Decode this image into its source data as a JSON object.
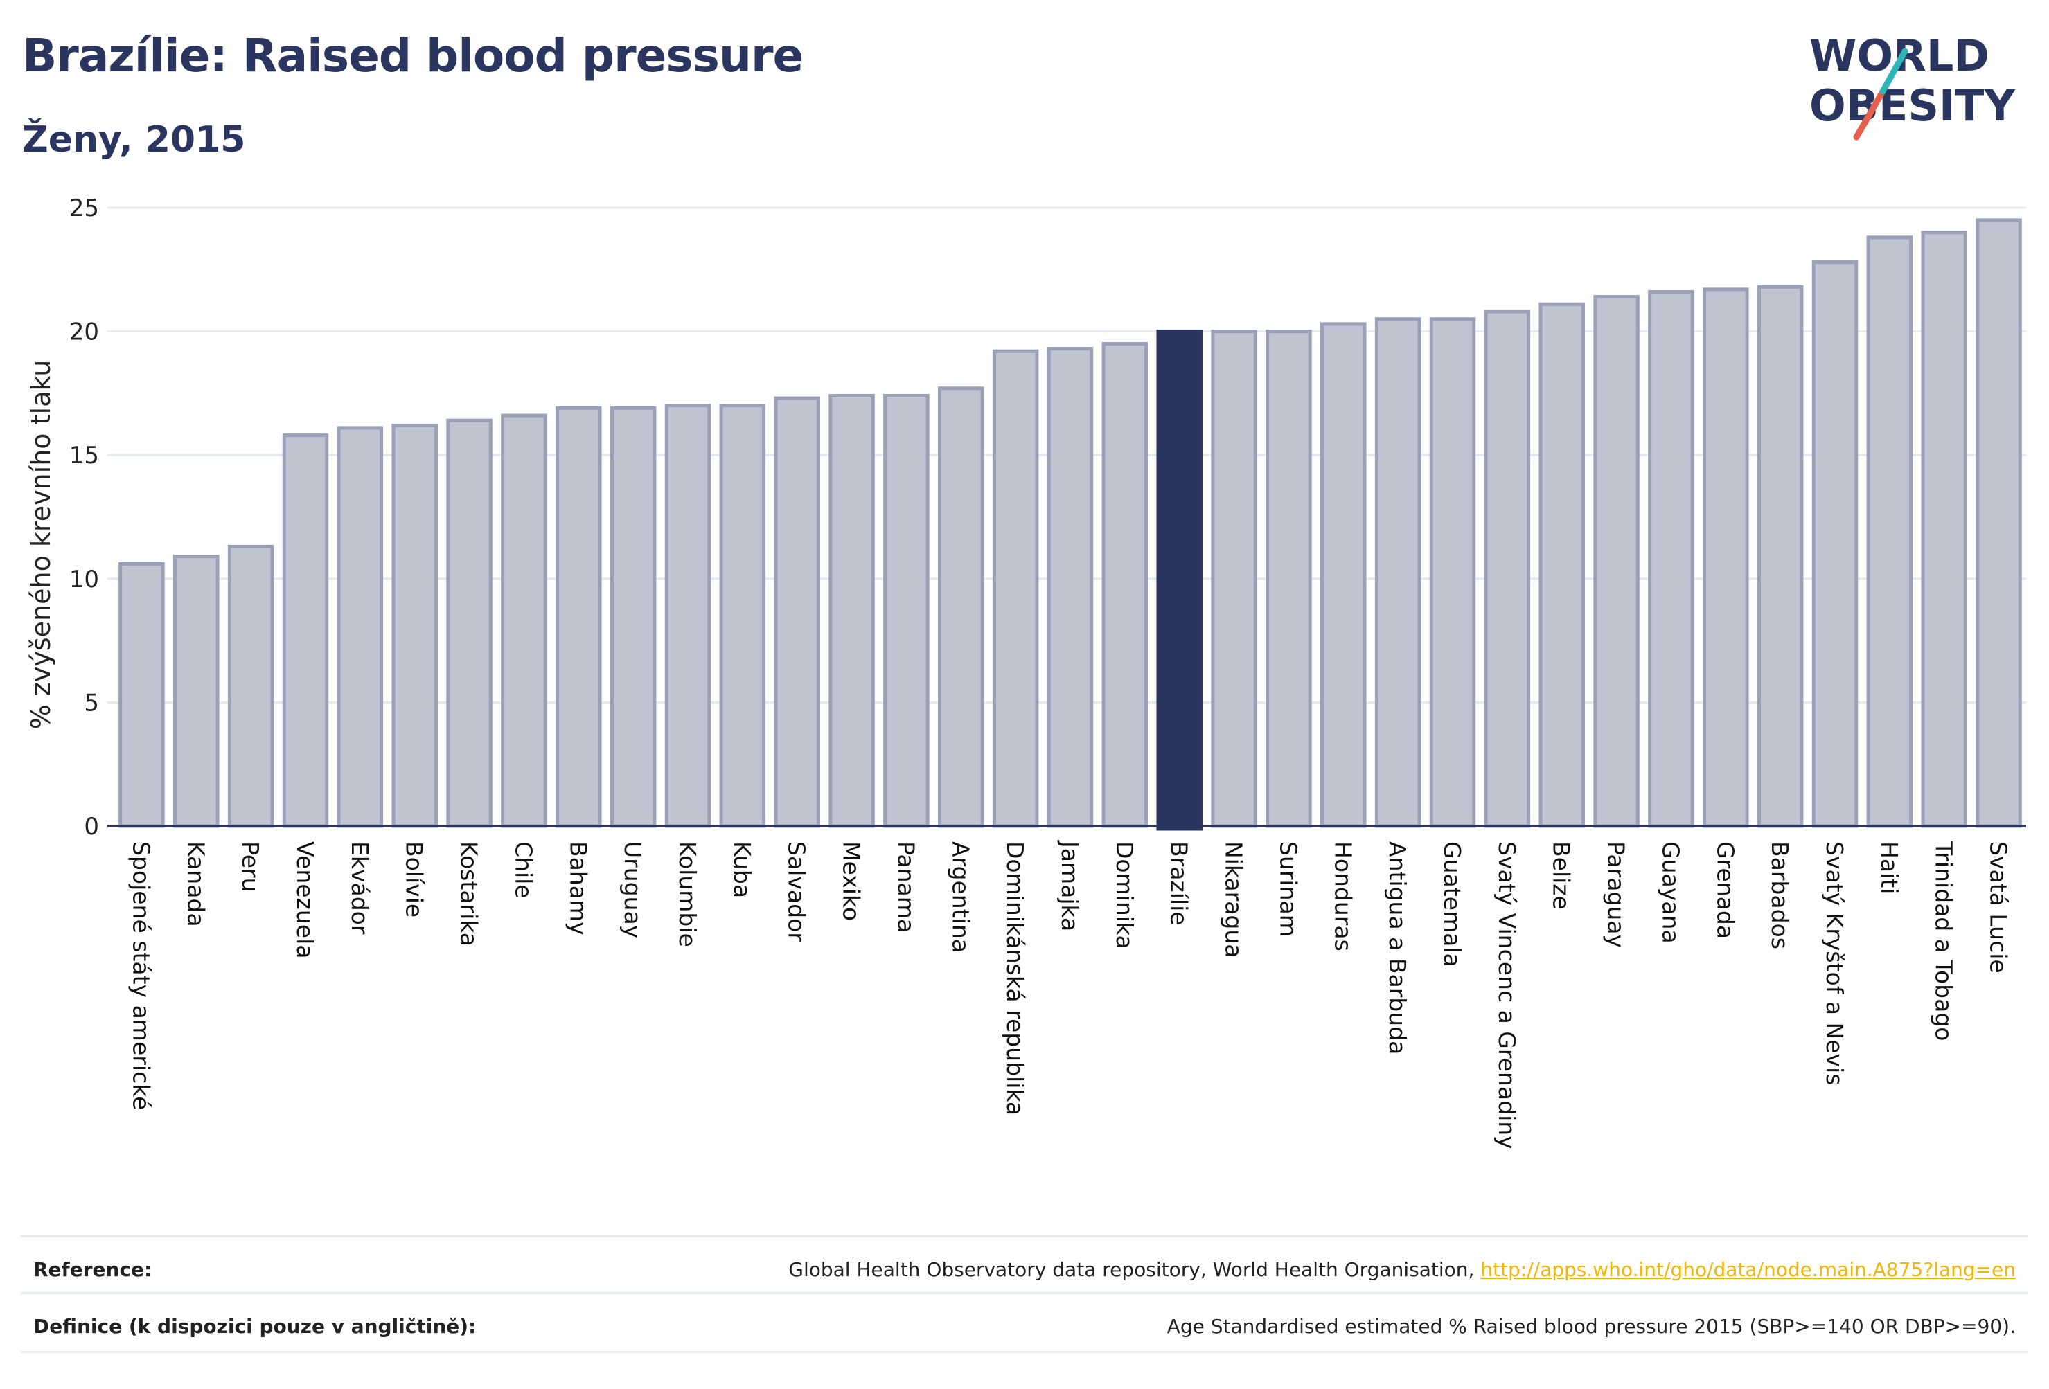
{
  "header": {
    "title": "Brazílie: Raised blood pressure",
    "subtitle": "Ženy, 2015"
  },
  "logo": {
    "line1": "WORLD",
    "line2": "OBESITY",
    "accent_colors": [
      "#2fb5b5",
      "#e8604c"
    ]
  },
  "colors": {
    "bar": "#c0c3d0",
    "bar_border": "#9aa0b8",
    "highlight": "#2b3660",
    "title": "#2b3660",
    "grid": "#e6e8ef",
    "link": "#f2b705"
  },
  "chart_data": {
    "type": "bar",
    "title": "Brazílie: Raised blood pressure",
    "subtitle": "Ženy, 2015",
    "xlabel": "",
    "ylabel": "% zvýšeného krevního tlaku",
    "ylim": [
      0,
      25
    ],
    "yticks": [
      0,
      5,
      10,
      15,
      20,
      25
    ],
    "grid": true,
    "highlight": "Brazílie",
    "categories": [
      "Spojené státy americké",
      "Kanada",
      "Peru",
      "Venezuela",
      "Ekvádor",
      "Bolívie",
      "Kostarika",
      "Chile",
      "Bahamy",
      "Uruguay",
      "Kolumbie",
      "Kuba",
      "Salvador",
      "Mexiko",
      "Panama",
      "Argentina",
      "Dominikánská republika",
      "Jamajka",
      "Dominika",
      "Brazílie",
      "Nikaragua",
      "Surinam",
      "Honduras",
      "Antigua a Barbuda",
      "Guatemala",
      "Svatý Vincenc a Grenadiny",
      "Belize",
      "Paraguay",
      "Guayana",
      "Grenada",
      "Barbados",
      "Svatý Kryštof a Nevis",
      "Haiti",
      "Trinidad a Tobago",
      "Svatá Lucie"
    ],
    "values": [
      10.6,
      10.9,
      11.3,
      15.8,
      16.1,
      16.2,
      16.4,
      16.6,
      16.9,
      16.9,
      17.0,
      17.0,
      17.3,
      17.4,
      17.4,
      17.7,
      19.2,
      19.3,
      19.5,
      20.0,
      20.0,
      20.0,
      20.3,
      20.5,
      20.5,
      20.8,
      21.1,
      21.4,
      21.6,
      21.7,
      21.8,
      22.8,
      23.8,
      24.0,
      24.5
    ]
  },
  "footer": {
    "reference_label": "Reference:",
    "reference_text": "Global Health Observatory data repository, World Health Organisation, ",
    "reference_link": "http://apps.who.int/gho/data/node.main.A875?lang=en",
    "definition_label": "Definice (k dispozici pouze v angličtině):",
    "definition_text": "Age Standardised estimated % Raised blood pressure 2015 (SBP>=140 OR DBP>=90)."
  }
}
